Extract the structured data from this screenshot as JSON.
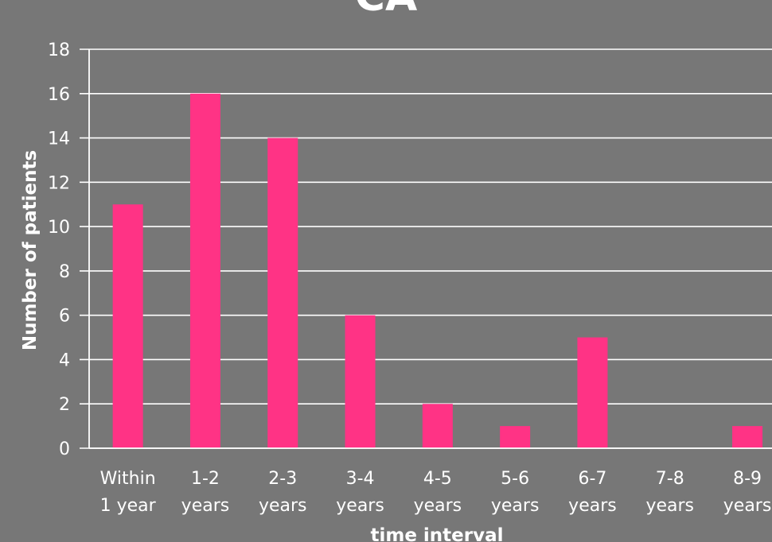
{
  "chart_data": {
    "type": "bar",
    "title": "CA",
    "xlabel": "time interval",
    "ylabel": "Number of patients",
    "categories": [
      [
        "Within",
        "1 year"
      ],
      [
        "1-2",
        "years"
      ],
      [
        "2-3",
        "years"
      ],
      [
        "3-4",
        "years"
      ],
      [
        "4-5",
        "years"
      ],
      [
        "5-6",
        "years"
      ],
      [
        "6-7",
        "years"
      ],
      [
        "7-8",
        "years"
      ],
      [
        "8-9",
        "years"
      ]
    ],
    "values": [
      11,
      16,
      14,
      6,
      2,
      1,
      5,
      0,
      1
    ],
    "yticks": [
      "0",
      "2",
      "4",
      "6",
      "8",
      "10",
      "12",
      "14",
      "16",
      "18"
    ],
    "ylim": [
      0,
      18
    ],
    "grid": true,
    "bar_color": "#ff3385",
    "grid_color": "#ffffff",
    "background": "#777777"
  }
}
